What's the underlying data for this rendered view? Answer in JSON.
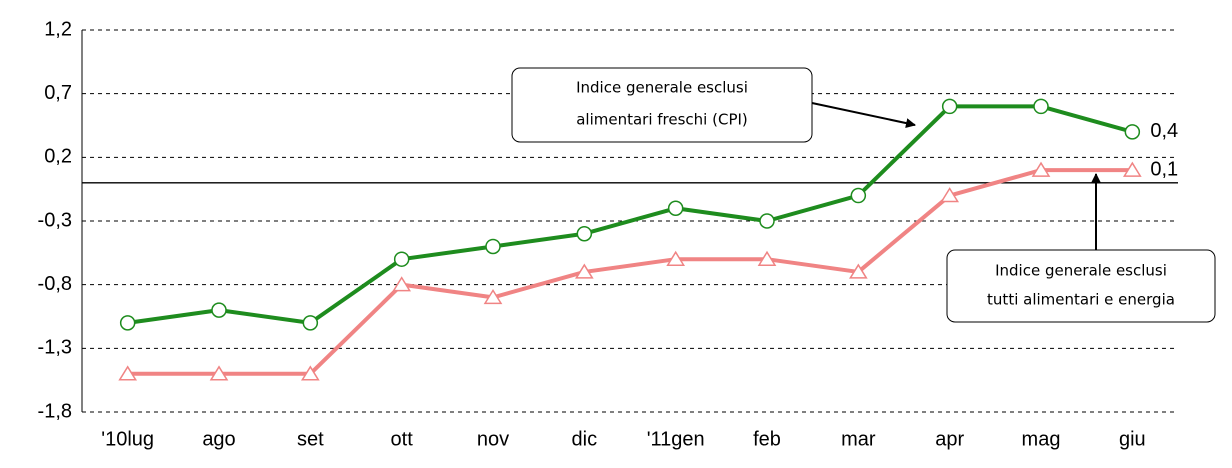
{
  "chart_data": {
    "type": "line",
    "categories": [
      "'10lug",
      "ago",
      "set",
      "ott",
      "nov",
      "dic",
      "'11gen",
      "feb",
      "mar",
      "apr",
      "mag",
      "giu"
    ],
    "series": [
      {
        "color": "#1e8c1e",
        "marker": "circle",
        "values": [
          -1.1,
          -1.0,
          -1.1,
          -0.6,
          -0.5,
          -0.4,
          -0.2,
          -0.3,
          -0.1,
          0.6,
          0.6,
          0.4
        ],
        "value_labels": [
          null,
          null,
          null,
          null,
          null,
          null,
          null,
          null,
          null,
          null,
          null,
          "0,4"
        ]
      },
      {
        "color": "#f08484",
        "marker": "triangle",
        "values": [
          -1.5,
          -1.5,
          -1.5,
          -0.8,
          -0.9,
          -0.7,
          -0.6,
          -0.6,
          -0.7,
          -0.1,
          0.1,
          0.1
        ],
        "value_labels": [
          null,
          null,
          null,
          null,
          null,
          null,
          null,
          null,
          null,
          null,
          null,
          "0,1"
        ]
      }
    ],
    "ylim": [
      -1.8,
      1.2
    ],
    "yticks": [
      {
        "value": -1.8,
        "label": "-1,8"
      },
      {
        "value": -1.3,
        "label": "-1,3"
      },
      {
        "value": -0.8,
        "label": "-0,8"
      },
      {
        "value": -0.3,
        "label": "-0,3"
      },
      {
        "value": 0.2,
        "label": "0,2"
      },
      {
        "value": 0.7,
        "label": "0,7"
      },
      {
        "value": 1.2,
        "label": "1,2"
      }
    ],
    "grid": true,
    "annotations": [
      {
        "lines": [
          "Indice generale esclusi",
          "alimentari freschi (CPI)"
        ]
      },
      {
        "lines": [
          "Indice generale esclusi",
          "tutti alimentari e energia"
        ]
      }
    ]
  }
}
